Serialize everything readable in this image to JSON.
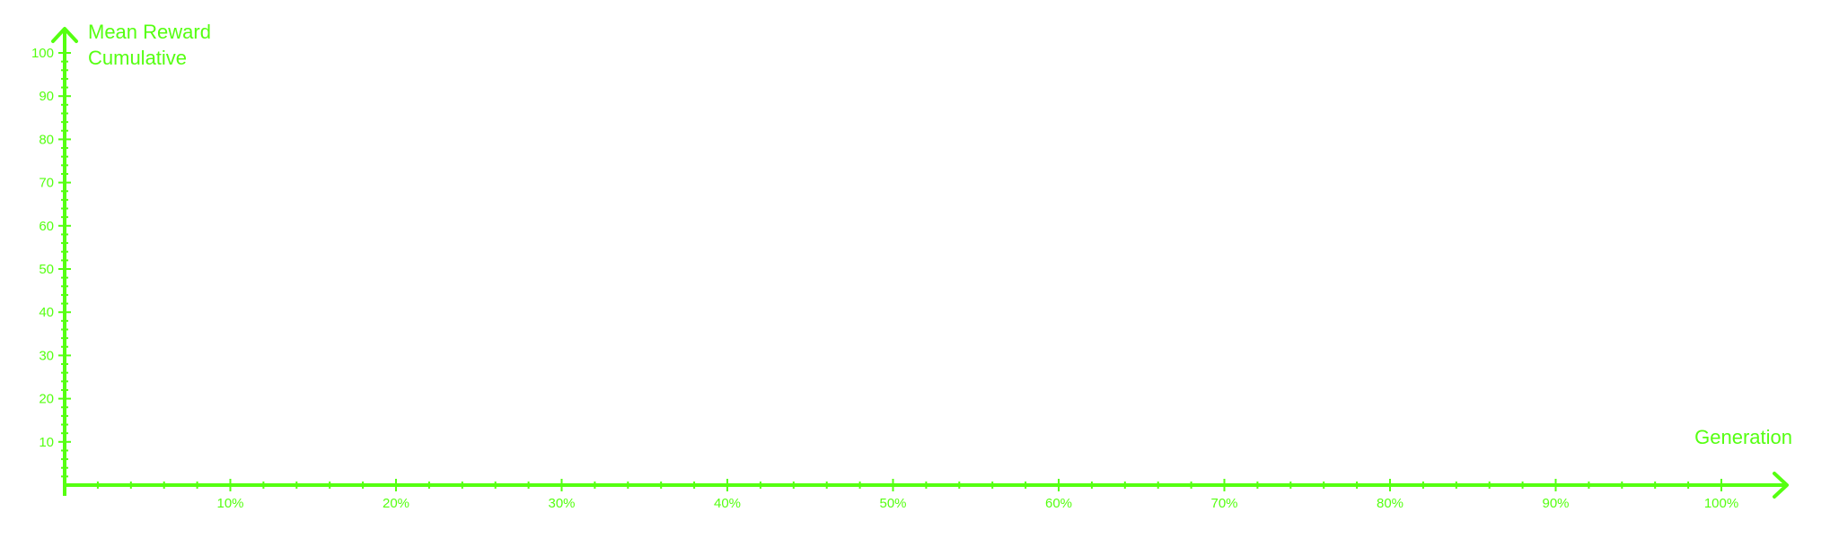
{
  "chart_data": {
    "type": "line",
    "title": "",
    "ylabel_lines": [
      "Mean Reward",
      "Cumulative"
    ],
    "xlabel": "Generation",
    "x_ticks": [
      "10%",
      "20%",
      "30%",
      "40%",
      "50%",
      "60%",
      "70%",
      "80%",
      "90%",
      "100%"
    ],
    "y_ticks": [
      "10",
      "20",
      "30",
      "40",
      "50",
      "60",
      "70",
      "80",
      "90",
      "100"
    ],
    "xlim": [
      0,
      100
    ],
    "ylim": [
      0,
      100
    ],
    "series": [],
    "grid": false,
    "color": "#55ff11"
  }
}
